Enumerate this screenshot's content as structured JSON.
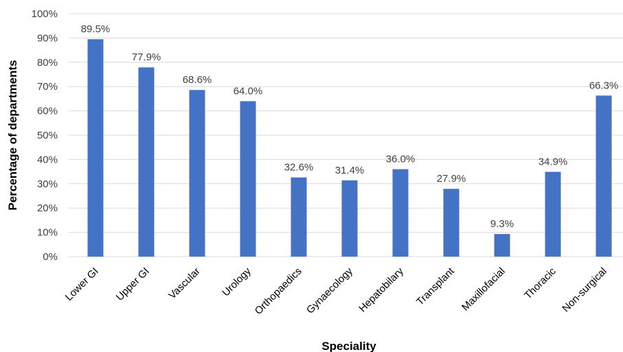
{
  "chart_data": {
    "type": "bar",
    "categories": [
      "Lower GI",
      "Upper GI",
      "Vascular",
      "Urology",
      "Orthopaedics",
      "Gynaecology",
      "Hepatobilary",
      "Transplant",
      "Maxillofacial",
      "Thoracic",
      "Non-surgical"
    ],
    "values": [
      89.5,
      77.9,
      68.6,
      64.0,
      32.6,
      31.4,
      36.0,
      27.9,
      9.3,
      34.9,
      66.3
    ],
    "data_labels": [
      "89.5%",
      "77.9%",
      "68.6%",
      "64.0%",
      "32.6%",
      "31.4%",
      "36.0%",
      "27.9%",
      "9.3%",
      "34.9%",
      "66.3%"
    ],
    "y_ticks": [
      "0%",
      "10%",
      "20%",
      "30%",
      "40%",
      "50%",
      "60%",
      "70%",
      "80%",
      "90%",
      "100%"
    ],
    "xlabel": "Speciality",
    "ylabel": "Percentage of departments",
    "ylim": [
      0,
      100
    ],
    "grid": true,
    "bar_color": "#4472c4"
  }
}
